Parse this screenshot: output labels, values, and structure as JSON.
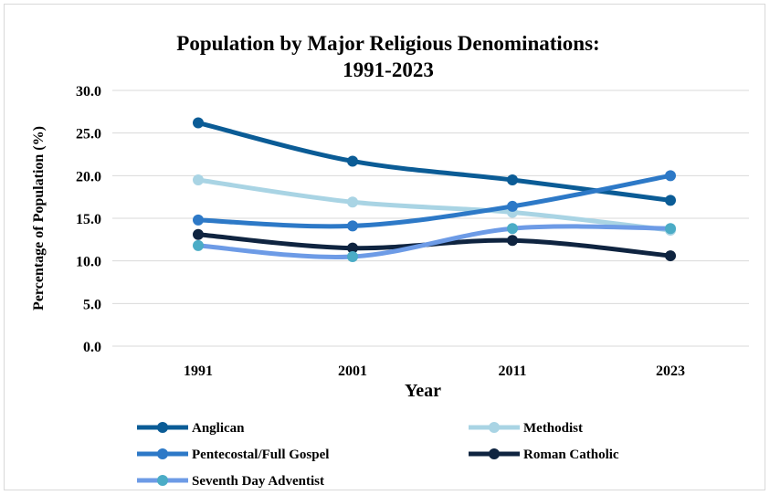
{
  "chart_data": {
    "type": "line",
    "title": "Population by Major Religious Denominations:",
    "title_line2": "1991-2023",
    "xlabel": "Year",
    "ylabel": "Percentage of Population (%)",
    "categories": [
      "1991",
      "2001",
      "2011",
      "2023"
    ],
    "ylim": [
      0,
      30
    ],
    "yticks": [
      "0.0",
      "5.0",
      "10.0",
      "15.0",
      "20.0",
      "25.0",
      "30.0"
    ],
    "grid": true,
    "legend_position": "bottom",
    "series": [
      {
        "name": "Anglican",
        "values": [
          26.2,
          21.7,
          19.5,
          17.1
        ],
        "color": "#0b5c96",
        "marker": "#0b5c96"
      },
      {
        "name": "Methodist",
        "values": [
          19.5,
          16.9,
          15.7,
          13.6
        ],
        "color": "#a9d4e4",
        "marker": "#a9d4e4"
      },
      {
        "name": "Pentecostal/Full Gospel",
        "values": [
          14.8,
          14.1,
          16.4,
          20.0
        ],
        "color": "#2d79c7",
        "marker": "#2d79c7"
      },
      {
        "name": "Roman Catholic",
        "values": [
          13.1,
          11.5,
          12.4,
          10.6
        ],
        "color": "#0f2440",
        "marker": "#0f2440"
      },
      {
        "name": "Seventh Day Adventist",
        "values": [
          11.8,
          10.5,
          13.8,
          13.8
        ],
        "color": "#6d9be6",
        "marker": "#4bacc6"
      }
    ]
  }
}
